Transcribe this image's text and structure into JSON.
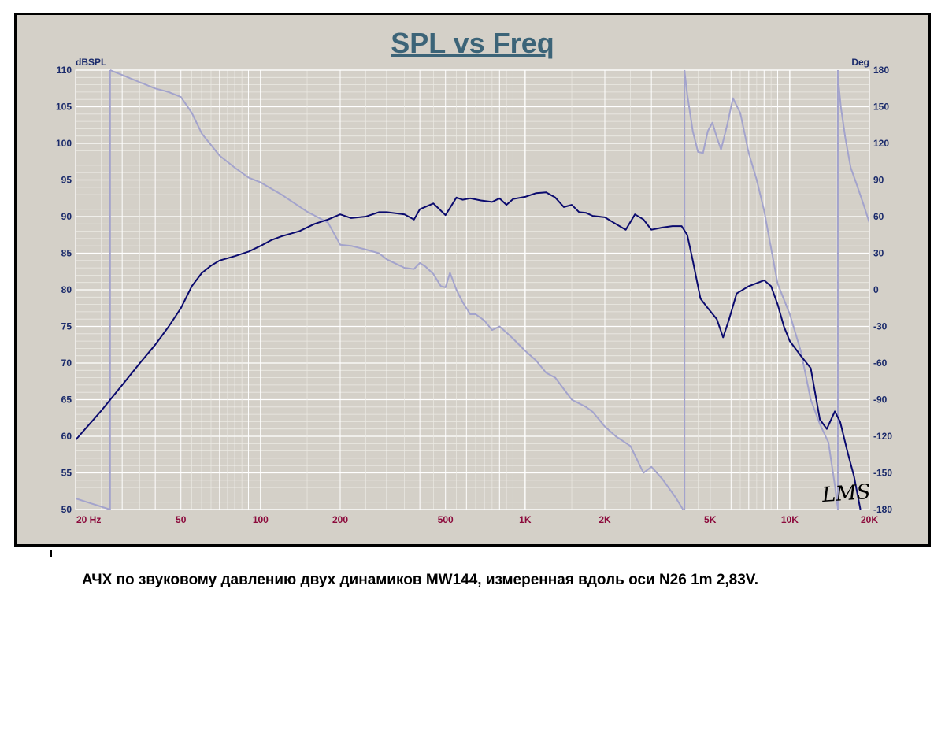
{
  "caption": "АЧХ по звуковому давлению двух динамиков MW144, измеренная вдоль оси N26 1m 2,83V.",
  "signature": "LMS",
  "chart_data": {
    "type": "line",
    "title": "SPL vs Freq",
    "ylabel": "dBSPL",
    "y2label": "Deg",
    "x_scale": "log",
    "xlim": [
      20,
      20000
    ],
    "ylim": [
      50,
      110
    ],
    "y2lim": [
      -180,
      180
    ],
    "x_ticks": [
      {
        "value": 20,
        "label": "20  Hz"
      },
      {
        "value": 50,
        "label": "50"
      },
      {
        "value": 100,
        "label": "100"
      },
      {
        "value": 200,
        "label": "200"
      },
      {
        "value": 500,
        "label": "500"
      },
      {
        "value": 1000,
        "label": "1K"
      },
      {
        "value": 2000,
        "label": "2K"
      },
      {
        "value": 5000,
        "label": "5K"
      },
      {
        "value": 10000,
        "label": "10K"
      },
      {
        "value": 20000,
        "label": "20K"
      }
    ],
    "y_ticks": [
      110,
      105,
      100,
      95,
      90,
      85,
      80,
      75,
      70,
      65,
      60,
      55,
      50
    ],
    "y2_ticks": [
      180,
      150,
      120,
      90,
      60,
      30,
      0,
      -30,
      -60,
      -90,
      -120,
      -150,
      -180
    ],
    "grid": true,
    "colors": {
      "spl": "#0a0a6e",
      "phase": "#a3a3cc",
      "title": "#3c6478",
      "ytick": "#1a2a6b",
      "xtick": "#8c0a3c",
      "grid": "#ffffff"
    },
    "series": [
      {
        "id": "spl",
        "axis": "left",
        "x": [
          20,
          25,
          30,
          35,
          40,
          45,
          50,
          55,
          60,
          65,
          70,
          80,
          90,
          100,
          110,
          120,
          140,
          160,
          180,
          200,
          220,
          250,
          280,
          300,
          350,
          380,
          400,
          450,
          500,
          550,
          580,
          620,
          680,
          750,
          800,
          850,
          900,
          1000,
          1100,
          1200,
          1300,
          1400,
          1500,
          1600,
          1700,
          1800,
          2000,
          2200,
          2400,
          2600,
          2800,
          3000,
          3300,
          3600,
          3900,
          4100,
          4300,
          4600,
          4900,
          5300,
          5600,
          5900,
          6300,
          7000,
          8000,
          8500,
          9000,
          9500,
          10000,
          11000,
          12000,
          13000,
          13800,
          14800,
          15500,
          16500,
          17500,
          18500
        ],
        "values": [
          59.5,
          63.5,
          67,
          70,
          72.5,
          75,
          77.5,
          80.5,
          82.3,
          83.3,
          84,
          84.6,
          85.2,
          86,
          86.8,
          87.3,
          88,
          89,
          89.6,
          90.3,
          89.8,
          90,
          90.6,
          90.6,
          90.3,
          89.6,
          91,
          91.8,
          90.2,
          92.6,
          92.3,
          92.5,
          92.2,
          92,
          92.5,
          91.6,
          92.4,
          92.7,
          93.2,
          93.3,
          92.6,
          91.3,
          91.6,
          90.6,
          90.5,
          90.1,
          89.9,
          89,
          88.2,
          90.3,
          89.6,
          88.2,
          88.5,
          88.7,
          88.7,
          87.5,
          84,
          78.8,
          77.5,
          76,
          73.5,
          76,
          79.5,
          80.5,
          81.3,
          80.5,
          78,
          75,
          73,
          71,
          69.3,
          62.3,
          61,
          63.4,
          62,
          58,
          54.5,
          50
        ]
      },
      {
        "id": "phase1",
        "axis": "right",
        "x": [
          20,
          27
        ],
        "values": [
          -171,
          -180
        ]
      },
      {
        "id": "phase2",
        "axis": "right",
        "x": [
          27,
          30,
          35,
          40,
          45,
          50,
          55,
          60,
          70,
          80,
          90,
          100,
          120,
          150,
          180,
          200,
          220,
          250,
          280,
          300,
          350,
          380,
          400,
          420,
          450,
          480,
          500,
          520,
          550,
          580,
          620,
          650,
          700,
          750,
          800,
          850,
          900,
          1000,
          1100,
          1200,
          1300,
          1500,
          1700,
          1800,
          2000,
          2200,
          2500,
          2800,
          3000,
          3300,
          3700,
          3950
        ],
        "values": [
          180,
          176,
          170,
          165,
          162,
          158,
          145,
          128,
          110,
          100,
          92,
          88,
          78,
          64,
          55,
          37,
          36,
          33,
          30,
          25,
          18,
          17,
          22,
          19,
          13,
          3,
          2,
          14,
          0,
          -10,
          -20,
          -20,
          -25,
          -33,
          -30,
          -35,
          -40,
          -50,
          -58,
          -68,
          -72,
          -90,
          -96,
          -100,
          -112,
          -120,
          -128,
          -150,
          -145,
          -155,
          -170,
          -180
        ]
      },
      {
        "id": "phase3",
        "axis": "right",
        "x": [
          4000,
          4100,
          4300,
          4500,
          4700,
          4900,
          5100,
          5300,
          5500,
          5800,
          6100,
          6500,
          7000,
          7500,
          8000,
          9000,
          10000,
          11000,
          12000,
          13000,
          14000,
          14800,
          15200
        ],
        "values": [
          180,
          160,
          130,
          113,
          112,
          130,
          137,
          125,
          115,
          135,
          157,
          145,
          112,
          90,
          65,
          5,
          -20,
          -50,
          -90,
          -110,
          -125,
          -160,
          -180
        ]
      },
      {
        "id": "phase4",
        "axis": "right",
        "x": [
          15200,
          15600,
          16200,
          17000,
          18000,
          19000,
          20000
        ],
        "values": [
          175,
          150,
          125,
          100,
          85,
          70,
          55
        ]
      }
    ]
  }
}
